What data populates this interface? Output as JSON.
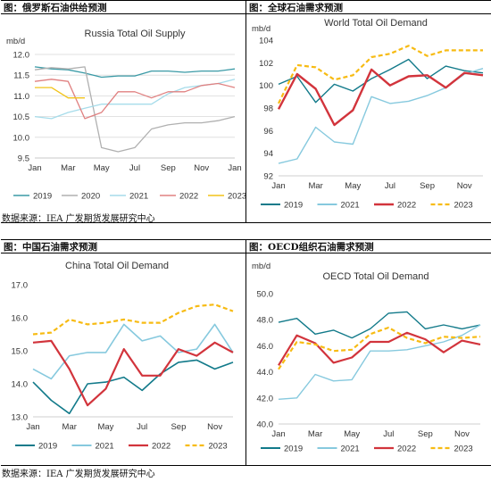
{
  "source_text": "数据来源：IEA 广发期货发展研究中心",
  "chart_data": [
    {
      "id": "russia",
      "type": "line",
      "panel_title": "图：俄罗斯石油供给预测",
      "title": "Russia Total Oil Supply",
      "ylabel": "mb/d",
      "ylim": [
        9.5,
        12.0
      ],
      "yticks": [
        "9.5",
        "10.0",
        "10.5",
        "11.0",
        "11.5",
        "12.0"
      ],
      "ytick_values": [
        9.5,
        10.0,
        10.5,
        11.0,
        11.5,
        12.0
      ],
      "xticks": [
        "Jan",
        "Mar",
        "May",
        "Jul",
        "Sep",
        "Nov",
        "Jan"
      ],
      "xtick_positions": [
        1,
        3,
        5,
        7,
        9,
        11,
        13
      ],
      "x_range": [
        1,
        13
      ],
      "legend_position": "bottom",
      "series": [
        {
          "name": "2019",
          "color": "#3a9aa6",
          "width": 1.3,
          "dash": "",
          "x": [
            1,
            2,
            3,
            4,
            5,
            6,
            7,
            8,
            9,
            10,
            11,
            12,
            13
          ],
          "values": [
            11.7,
            11.65,
            11.63,
            11.55,
            11.45,
            11.48,
            11.48,
            11.6,
            11.6,
            11.57,
            11.6,
            11.6,
            11.65
          ]
        },
        {
          "name": "2020",
          "color": "#b0b0b0",
          "width": 1.3,
          "dash": "",
          "x": [
            1,
            2,
            3,
            4,
            5,
            6,
            7,
            8,
            9,
            10,
            11,
            12,
            13
          ],
          "values": [
            11.63,
            11.68,
            11.65,
            11.7,
            9.75,
            9.65,
            9.75,
            10.2,
            10.3,
            10.35,
            10.35,
            10.4,
            10.5
          ]
        },
        {
          "name": "2021",
          "color": "#a6dcea",
          "width": 1.3,
          "dash": "",
          "x": [
            1,
            2,
            3,
            4,
            5,
            6,
            7,
            8,
            9,
            10,
            11,
            12,
            13
          ],
          "values": [
            10.5,
            10.45,
            10.6,
            10.7,
            10.8,
            10.8,
            10.8,
            10.8,
            11.05,
            11.2,
            11.25,
            11.3,
            11.4
          ]
        },
        {
          "name": "2022",
          "color": "#e08080",
          "width": 1.3,
          "dash": "",
          "x": [
            1,
            2,
            3,
            4,
            5,
            6,
            7,
            8,
            9,
            10,
            11,
            12,
            13
          ],
          "values": [
            11.35,
            11.4,
            11.35,
            10.45,
            10.6,
            11.1,
            11.1,
            10.95,
            11.1,
            11.1,
            11.25,
            11.3,
            11.2
          ]
        },
        {
          "name": "2023",
          "color": "#f2c318",
          "width": 1.3,
          "dash": "",
          "x": [
            1,
            2,
            3,
            4
          ],
          "values": [
            11.2,
            11.2,
            10.95,
            10.95
          ]
        }
      ]
    },
    {
      "id": "world",
      "type": "line",
      "panel_title": "图：全球石油需求预测",
      "title": "World Total Oil Demand",
      "ylabel": "mb/d",
      "ylim": [
        92,
        104
      ],
      "yticks": [
        "92",
        "94",
        "96",
        "98",
        "100",
        "102",
        "104"
      ],
      "ytick_values": [
        92,
        94,
        96,
        98,
        100,
        102,
        104
      ],
      "xticks": [
        "Jan",
        "Mar",
        "May",
        "Jul",
        "Sep",
        "Nov"
      ],
      "xtick_positions": [
        1,
        3,
        5,
        7,
        9,
        11
      ],
      "x_range": [
        1,
        12
      ],
      "legend_position": "bottom",
      "series": [
        {
          "name": "2019",
          "color": "#127a8a",
          "width": 1.4,
          "dash": "",
          "x": [
            1,
            2,
            3,
            4,
            5,
            6,
            7,
            8,
            9,
            10,
            11,
            12
          ],
          "values": [
            100.1,
            100.8,
            98.5,
            100.1,
            99.5,
            100.6,
            101.4,
            102.3,
            100.6,
            101.7,
            101.3,
            101.1
          ]
        },
        {
          "name": "2021",
          "color": "#86c9de",
          "width": 1.4,
          "dash": "",
          "x": [
            1,
            2,
            3,
            4,
            5,
            6,
            7,
            8,
            9,
            10,
            11,
            12
          ],
          "values": [
            93.1,
            93.5,
            96.3,
            95.0,
            94.8,
            99.0,
            98.4,
            98.6,
            99.1,
            99.8,
            101.0,
            101.5
          ]
        },
        {
          "name": "2022",
          "color": "#d2343c",
          "width": 2.4,
          "dash": "",
          "x": [
            1,
            2,
            3,
            4,
            5,
            6,
            7,
            8,
            9,
            10,
            11,
            12
          ],
          "values": [
            97.9,
            101.0,
            99.7,
            96.5,
            97.8,
            101.4,
            100.0,
            100.8,
            100.9,
            99.8,
            101.1,
            100.9
          ]
        },
        {
          "name": "2023",
          "color": "#f7bb13",
          "width": 2.2,
          "dash": "5 3",
          "x": [
            1,
            2,
            3,
            4,
            5,
            6,
            7,
            8,
            9,
            10,
            11,
            12
          ],
          "values": [
            98.4,
            101.8,
            101.6,
            100.5,
            100.9,
            102.5,
            102.8,
            103.5,
            102.6,
            103.1,
            103.1,
            103.1
          ]
        }
      ]
    },
    {
      "id": "china",
      "type": "line",
      "panel_title": "图：中国石油需求预测",
      "title": "China Total Oil Demand",
      "ylabel": "",
      "ylim": [
        13.0,
        17.0
      ],
      "yticks": [
        "13.0",
        "14.0",
        "15.0",
        "16.0",
        "17.0"
      ],
      "ytick_values": [
        13,
        14,
        15,
        16,
        17
      ],
      "xticks": [
        "Jan",
        "Mar",
        "May",
        "Jul",
        "Sep",
        "Nov"
      ],
      "xtick_positions": [
        1,
        3,
        5,
        7,
        9,
        11
      ],
      "x_range": [
        1,
        12
      ],
      "legend_position": "bottom",
      "series": [
        {
          "name": "2019",
          "color": "#127a8a",
          "width": 1.6,
          "dash": "",
          "x": [
            1,
            2,
            3,
            4,
            5,
            6,
            7,
            8,
            9,
            10,
            11,
            12
          ],
          "values": [
            14.05,
            13.5,
            13.1,
            14.0,
            14.05,
            14.2,
            13.8,
            14.3,
            14.65,
            14.72,
            14.45,
            14.65
          ]
        },
        {
          "name": "2021",
          "color": "#86c9de",
          "width": 1.6,
          "dash": "",
          "x": [
            1,
            2,
            3,
            4,
            5,
            6,
            7,
            8,
            9,
            10,
            11,
            12
          ],
          "values": [
            14.45,
            14.15,
            14.85,
            14.95,
            14.95,
            15.8,
            15.3,
            15.45,
            14.95,
            15.05,
            15.8,
            14.95
          ]
        },
        {
          "name": "2022",
          "color": "#d2343c",
          "width": 2.2,
          "dash": "",
          "x": [
            1,
            2,
            3,
            4,
            5,
            6,
            7,
            8,
            9,
            10,
            11,
            12
          ],
          "values": [
            15.25,
            15.3,
            14.45,
            13.35,
            13.85,
            15.05,
            14.25,
            14.25,
            15.05,
            14.85,
            15.25,
            14.95
          ]
        },
        {
          "name": "2023",
          "color": "#f7bb13",
          "width": 2.2,
          "dash": "5 3",
          "x": [
            1,
            2,
            3,
            4,
            5,
            6,
            7,
            8,
            9,
            10,
            11,
            12
          ],
          "values": [
            15.5,
            15.55,
            15.95,
            15.8,
            15.85,
            15.95,
            15.85,
            15.85,
            16.15,
            16.35,
            16.4,
            16.2
          ]
        }
      ]
    },
    {
      "id": "oecd",
      "type": "line",
      "panel_title": "图：OECD组织石油需求预测",
      "title": "OECD Total Oil Demand",
      "ylabel": "mb/d",
      "ylim": [
        40,
        50
      ],
      "yticks": [
        "40.0",
        "42.0",
        "44.0",
        "46.0",
        "48.0",
        "50.0"
      ],
      "ytick_values": [
        40,
        42,
        44,
        46,
        48,
        50
      ],
      "xticks": [
        "Jan",
        "Mar",
        "May",
        "Jul",
        "Sep",
        "Nov"
      ],
      "xtick_positions": [
        1,
        3,
        5,
        7,
        9,
        11
      ],
      "x_range": [
        1,
        12
      ],
      "legend_position": "bottom",
      "series": [
        {
          "name": "2019",
          "color": "#127a8a",
          "width": 1.4,
          "dash": "",
          "x": [
            1,
            2,
            3,
            4,
            5,
            6,
            7,
            8,
            9,
            10,
            11,
            12
          ],
          "values": [
            47.8,
            48.1,
            46.9,
            47.2,
            46.6,
            47.3,
            48.5,
            48.6,
            47.3,
            47.6,
            47.3,
            47.6
          ]
        },
        {
          "name": "2021",
          "color": "#86c9de",
          "width": 1.4,
          "dash": "",
          "x": [
            1,
            2,
            3,
            4,
            5,
            6,
            7,
            8,
            9,
            10,
            11,
            12
          ],
          "values": [
            41.9,
            42.0,
            43.8,
            43.3,
            43.4,
            45.6,
            45.6,
            45.7,
            46.0,
            46.3,
            46.8,
            47.6
          ]
        },
        {
          "name": "2022",
          "color": "#d2343c",
          "width": 2.2,
          "dash": "",
          "x": [
            1,
            2,
            3,
            4,
            5,
            6,
            7,
            8,
            9,
            10,
            11,
            12
          ],
          "values": [
            44.5,
            46.8,
            46.2,
            44.7,
            45.1,
            46.3,
            46.3,
            47.0,
            46.5,
            45.5,
            46.4,
            46.1
          ]
        },
        {
          "name": "2023",
          "color": "#f7bb13",
          "width": 2.2,
          "dash": "5 3",
          "x": [
            1,
            2,
            3,
            4,
            5,
            6,
            7,
            8,
            9,
            10,
            11,
            12
          ],
          "values": [
            44.2,
            46.3,
            46.1,
            45.6,
            45.7,
            46.9,
            47.4,
            46.6,
            46.2,
            46.7,
            46.6,
            46.7
          ]
        }
      ]
    }
  ]
}
